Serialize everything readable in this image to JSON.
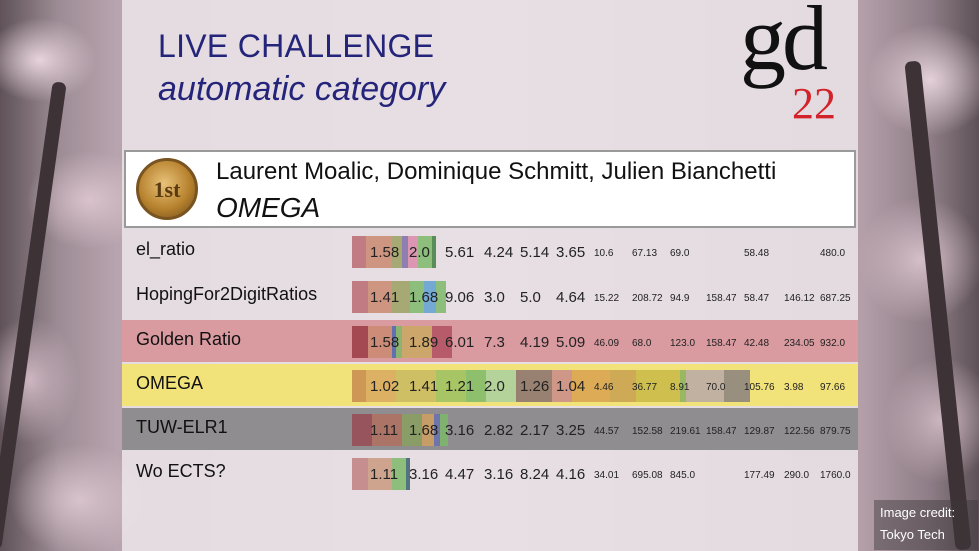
{
  "title": {
    "line1": "LIVE CHALLENGE",
    "line2": "automatic category"
  },
  "logo": {
    "letters": "gd",
    "year": "22"
  },
  "winner": {
    "medal": "1st",
    "authors": "Laurent Moalic, Dominique Schmitt, Julien Bianchetti",
    "team": "OMEGA"
  },
  "rows": [
    {
      "name": "el_ratio",
      "bg": "transparent",
      "values": [
        "1.58",
        "2.0",
        "5.61",
        "4.24",
        "5.14",
        "3.65",
        "10.6",
        "67.13",
        "69.0",
        "",
        "58.48",
        "",
        "480.0"
      ]
    },
    {
      "name": "HopingFor2DigitRatios",
      "bg": "transparent",
      "values": [
        "1.41",
        "1.68",
        "9.06",
        "3.0",
        "5.0",
        "4.64",
        "15.22",
        "208.72",
        "94.9",
        "158.47",
        "58.47",
        "146.12",
        "687.25"
      ]
    },
    {
      "name": "Golden Ratio",
      "bg": "#d99aa0",
      "values": [
        "1.58",
        "1.89",
        "6.01",
        "7.3",
        "4.19",
        "5.09",
        "46.09",
        "68.0",
        "123.0",
        "158.47",
        "42.48",
        "234.05",
        "932.0"
      ]
    },
    {
      "name": "OMEGA",
      "bg": "#f2e27a",
      "values": [
        "1.02",
        "1.41",
        "1.21",
        "2.0",
        "1.26",
        "1.04",
        "4.46",
        "36.77",
        "8.91",
        "70.0",
        "105.76",
        "3.98",
        "97.66"
      ]
    },
    {
      "name": "TUW-ELR1",
      "bg": "#8f8d8f",
      "values": [
        "1.11",
        "1.68",
        "3.16",
        "2.82",
        "2.17",
        "3.25",
        "44.57",
        "152.58",
        "219.61",
        "158.47",
        "129.87",
        "122.56",
        "879.75"
      ]
    },
    {
      "name": "Wo ECTS?",
      "bg": "transparent",
      "values": [
        "1.11",
        "3.16",
        "4.47",
        "3.16",
        "8.24",
        "4.16",
        "34.01",
        "695.08",
        "845.0",
        "",
        "177.49",
        "290.0",
        "1760.0"
      ]
    }
  ],
  "credit": {
    "line1": "Image credit:",
    "line2": "Tokyo Tech"
  },
  "colors": {
    "title": "#24247a",
    "year": "#d2232a",
    "golden_row": "#d99aa0",
    "omega_row": "#f2e27a",
    "tuw_row": "#8f8d8f"
  }
}
